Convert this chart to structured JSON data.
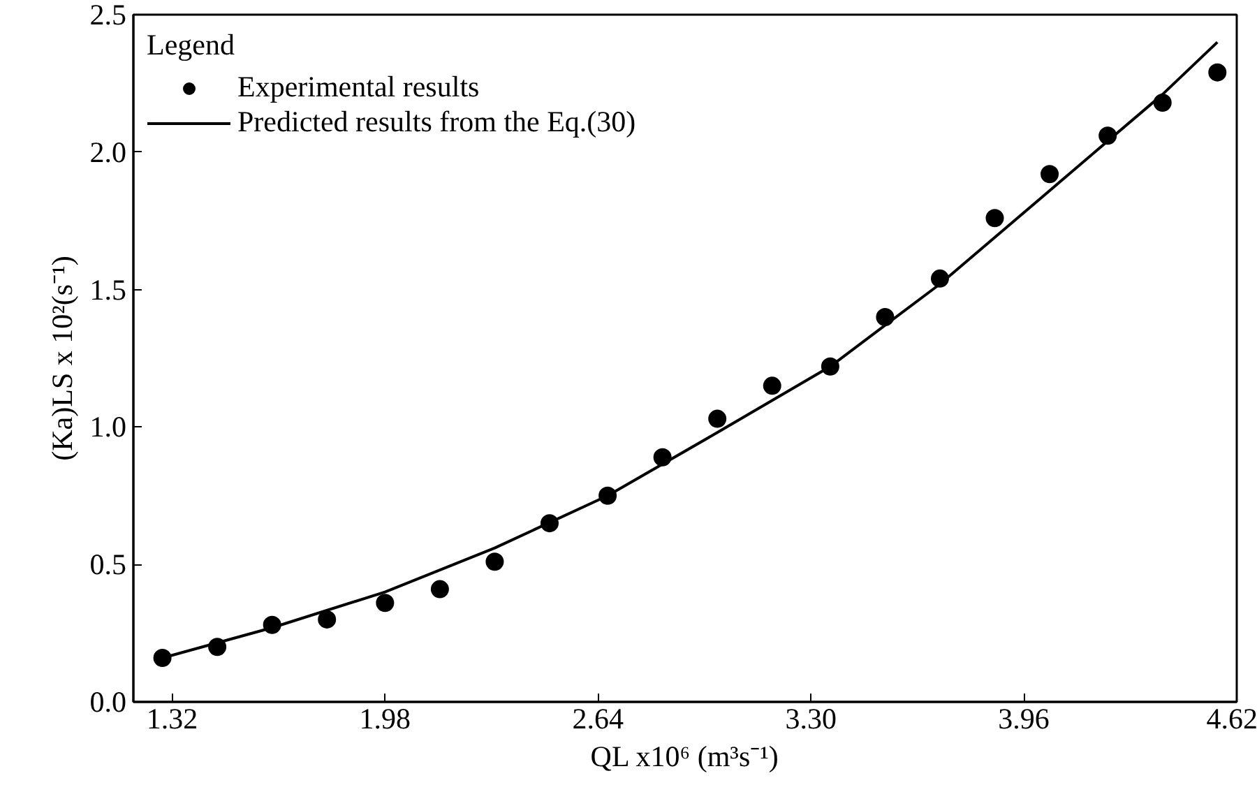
{
  "chart_data": {
    "type": "scatter",
    "xlabel": "QL x10⁶ (m³s⁻¹)",
    "ylabel": "(Ka)LS x 10²(s⁻¹)",
    "legend_title": "Legend",
    "xlim": [
      1.2,
      4.62
    ],
    "ylim": [
      0,
      2.5
    ],
    "xticks": [
      1.32,
      1.98,
      2.64,
      {
        "value": 3.3,
        "label": "3.30"
      },
      3.96,
      4.62
    ],
    "yticks": [
      {
        "value": 0,
        "label": "0.0"
      },
      0.5,
      {
        "value": 1,
        "label": "1.0"
      },
      1.5,
      {
        "value": 2,
        "label": "2.0"
      },
      2.5
    ],
    "grid": false,
    "legend": "top left",
    "marker": "circle",
    "series": [
      {
        "name": "Experimental results",
        "color": "#000000",
        "x": [
          1.29,
          1.46,
          1.63,
          1.8,
          1.98,
          2.15,
          2.32,
          2.49,
          2.67,
          2.84,
          3.01,
          3.18,
          3.36,
          3.53,
          3.7,
          3.87,
          4.04,
          4.22,
          4.39,
          4.56
        ],
        "values": [
          0.16,
          0.2,
          0.28,
          0.3,
          0.36,
          0.41,
          0.51,
          0.65,
          0.75,
          0.89,
          1.03,
          1.15,
          1.22,
          1.4,
          1.54,
          1.76,
          1.92,
          2.06,
          2.18,
          2.29
        ]
      },
      {
        "name": "Predicted results from the Eq.(30)",
        "type": "line",
        "marker": "none",
        "line_style": "solid",
        "color": "#000000",
        "x": [
          1.29,
          1.63,
          1.98,
          2.32,
          2.67,
          3.01,
          3.36,
          3.7,
          4.04,
          4.22,
          4.39,
          4.56
        ],
        "values": [
          0.16,
          0.27,
          0.4,
          0.56,
          0.75,
          0.98,
          1.22,
          1.52,
          1.86,
          2.04,
          2.21,
          2.4
        ]
      }
    ]
  }
}
